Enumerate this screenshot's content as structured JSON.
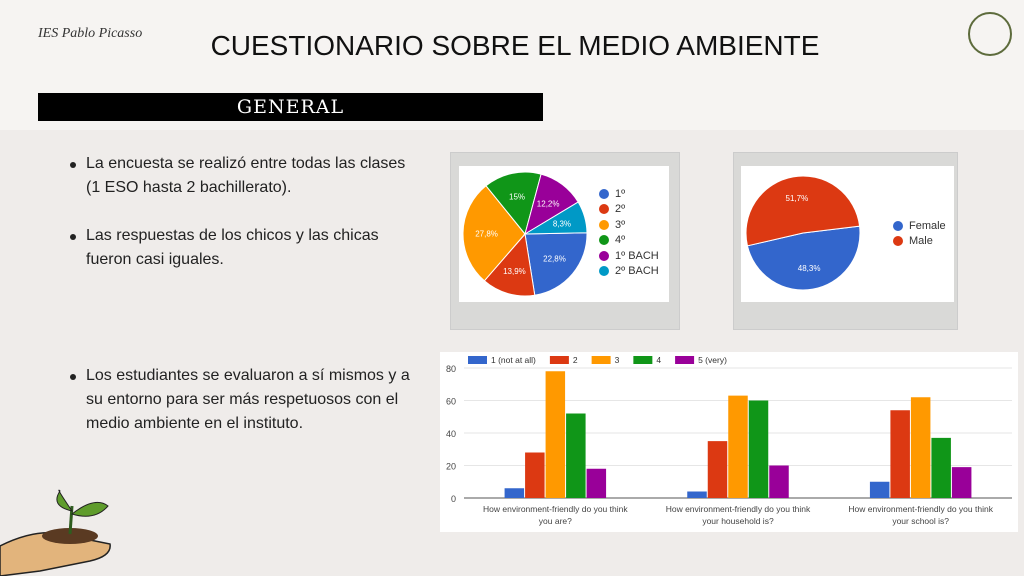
{
  "header": {
    "school": "IES Pablo Picasso",
    "title": "CUESTIONARIO SOBRE EL MEDIO AMBIENTE",
    "section": "GENERAL"
  },
  "bullets": [
    "La encuesta se realizó entre todas las clases (1 ESO hasta 2 bachillerato).",
    "Las respuestas de los chicos y las chicas fueron casi iguales.",
    "Los estudiantes se evaluaron a sí mismos y a su entorno para ser más respetuosos con el medio ambiente en el instituto."
  ],
  "chart_data": [
    {
      "type": "pie",
      "categories": [
        "1º",
        "2º",
        "3º",
        "4º",
        "1º BACH",
        "2º BACH"
      ],
      "values": [
        22.8,
        13.9,
        27.8,
        15,
        12.2,
        8.3
      ],
      "labels": [
        "22,8%",
        "13,9%",
        "27,8%",
        "15%",
        "12,2%",
        "8,3%"
      ],
      "colors": [
        "#3366cc",
        "#dc3912",
        "#ff9900",
        "#109618",
        "#990099",
        "#0099c6"
      ],
      "legend": "right"
    },
    {
      "type": "pie",
      "categories": [
        "Female",
        "Male"
      ],
      "values": [
        48.3,
        51.7
      ],
      "labels": [
        "48,3%",
        "51,7%"
      ],
      "colors": [
        "#3366cc",
        "#dc3912"
      ],
      "legend": "right"
    },
    {
      "type": "bar",
      "categories": [
        "How environment-friendly do you think you are?",
        "How environment-friendly do you think your household is?",
        "How environment-friendly do you think your school is?"
      ],
      "category_lines": [
        [
          "How environment-friendly do you think",
          "you are?"
        ],
        [
          "How environment-friendly do you think",
          "your household is?"
        ],
        [
          "How environment-friendly do you think",
          "your school is?"
        ]
      ],
      "series": [
        {
          "name": "1 (not at all)",
          "color": "#3366cc",
          "values": [
            6,
            4,
            10
          ]
        },
        {
          "name": "2",
          "color": "#dc3912",
          "values": [
            28,
            35,
            54
          ]
        },
        {
          "name": "3",
          "color": "#ff9900",
          "values": [
            78,
            63,
            62
          ]
        },
        {
          "name": "4",
          "color": "#109618",
          "values": [
            52,
            60,
            37
          ]
        },
        {
          "name": "5 (very)",
          "color": "#990099",
          "values": [
            18,
            20,
            19
          ]
        }
      ],
      "ylim": [
        0,
        80
      ],
      "yticks": [
        0,
        20,
        40,
        60,
        80
      ],
      "legend": "top"
    }
  ]
}
